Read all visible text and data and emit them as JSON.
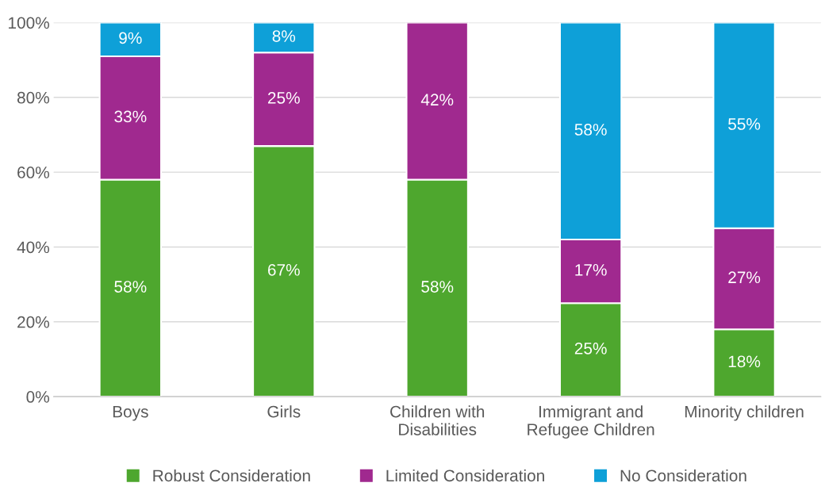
{
  "chart_data": {
    "type": "bar",
    "stacked": true,
    "categories": [
      "Boys",
      "Girls",
      "Children with\nDisabilities",
      "Immigrant and\nRefugee Children",
      "Minority children"
    ],
    "series": [
      {
        "name": "Robust Consideration",
        "color": "#4ea72e",
        "values": [
          58,
          67,
          58,
          25,
          18
        ],
        "value_labels": [
          "58%",
          "67%",
          "58%",
          "25%",
          "18%"
        ]
      },
      {
        "name": "Limited Consideration",
        "color": "#a0298f",
        "values": [
          33,
          25,
          42,
          17,
          27
        ],
        "value_labels": [
          "33%",
          "25%",
          "42%",
          "17%",
          "27%"
        ]
      },
      {
        "name": "No Consideration",
        "color": "#0ea0d8",
        "values": [
          9,
          8,
          0,
          58,
          55
        ],
        "value_labels": [
          "9%",
          "8%",
          null,
          "58%",
          "55%"
        ]
      }
    ],
    "ylim": [
      0,
      100
    ],
    "yticks": [
      {
        "value": 0,
        "label": "0%"
      },
      {
        "value": 20,
        "label": "20%"
      },
      {
        "value": 40,
        "label": "40%"
      },
      {
        "value": 60,
        "label": "60%"
      },
      {
        "value": 80,
        "label": "80%"
      },
      {
        "value": 100,
        "label": "100%"
      }
    ],
    "grid": "y",
    "legend": "bottom"
  }
}
